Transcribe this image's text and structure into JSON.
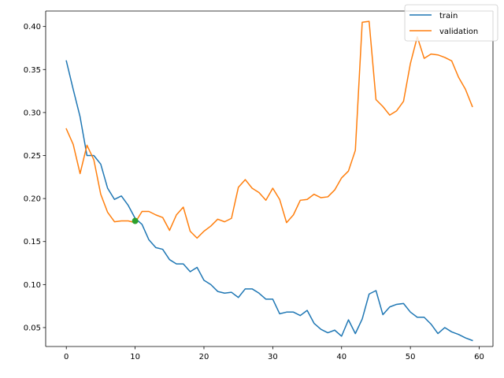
{
  "chart_data": {
    "type": "line",
    "title": "",
    "xlabel": "",
    "ylabel": "",
    "xlim": [
      -3,
      62
    ],
    "ylim": [
      0.028,
      0.418
    ],
    "xticks": [
      0,
      10,
      20,
      30,
      40,
      50,
      60
    ],
    "yticks": [
      0.05,
      0.1,
      0.15,
      0.2,
      0.25,
      0.3,
      0.35,
      0.4
    ],
    "grid": false,
    "legend_position": "top-right",
    "series": [
      {
        "name": "train",
        "color": "#1f77b4",
        "x": [
          0,
          1,
          2,
          3,
          4,
          5,
          6,
          7,
          8,
          9,
          10,
          11,
          12,
          13,
          14,
          15,
          16,
          17,
          18,
          19,
          20,
          21,
          22,
          23,
          24,
          25,
          26,
          27,
          28,
          29,
          30,
          31,
          32,
          33,
          34,
          35,
          36,
          37,
          38,
          39,
          40,
          41,
          42,
          43,
          44,
          45,
          46,
          47,
          48,
          49,
          50,
          51,
          52,
          53,
          54,
          55,
          56,
          57,
          58,
          59
        ],
        "y": [
          0.36,
          0.327,
          0.295,
          0.25,
          0.25,
          0.24,
          0.212,
          0.199,
          0.203,
          0.192,
          0.177,
          0.17,
          0.152,
          0.143,
          0.141,
          0.129,
          0.124,
          0.124,
          0.115,
          0.12,
          0.105,
          0.1,
          0.092,
          0.09,
          0.091,
          0.085,
          0.095,
          0.095,
          0.09,
          0.083,
          0.083,
          0.066,
          0.068,
          0.068,
          0.064,
          0.07,
          0.055,
          0.048,
          0.044,
          0.047,
          0.04,
          0.059,
          0.043,
          0.06,
          0.089,
          0.093,
          0.065,
          0.074,
          0.077,
          0.078,
          0.068,
          0.062,
          0.062,
          0.054,
          0.043,
          0.05,
          0.045,
          0.042,
          0.038,
          0.035
        ]
      },
      {
        "name": "validation",
        "color": "#ff7f0e",
        "x": [
          0,
          1,
          2,
          3,
          4,
          5,
          6,
          7,
          8,
          9,
          10,
          11,
          12,
          13,
          14,
          15,
          16,
          17,
          18,
          19,
          20,
          21,
          22,
          23,
          24,
          25,
          26,
          27,
          28,
          29,
          30,
          31,
          32,
          33,
          34,
          35,
          36,
          37,
          38,
          39,
          40,
          41,
          42,
          43,
          44,
          45,
          46,
          47,
          48,
          49,
          50,
          51,
          52,
          53,
          54,
          55,
          56,
          57,
          58,
          59
        ],
        "y": [
          0.281,
          0.263,
          0.229,
          0.262,
          0.245,
          0.205,
          0.184,
          0.173,
          0.174,
          0.174,
          0.172,
          0.185,
          0.185,
          0.181,
          0.178,
          0.163,
          0.181,
          0.19,
          0.162,
          0.154,
          0.162,
          0.168,
          0.176,
          0.173,
          0.177,
          0.213,
          0.222,
          0.212,
          0.207,
          0.198,
          0.212,
          0.199,
          0.172,
          0.181,
          0.198,
          0.199,
          0.205,
          0.201,
          0.202,
          0.21,
          0.224,
          0.232,
          0.256,
          0.405,
          0.406,
          0.315,
          0.307,
          0.297,
          0.302,
          0.313,
          0.357,
          0.388,
          0.363,
          0.368,
          0.367,
          0.364,
          0.36,
          0.341,
          0.327,
          0.307
        ]
      }
    ],
    "annotations": [
      {
        "type": "point",
        "x": 10,
        "y": 0.174,
        "color": "#2ca02c"
      }
    ]
  }
}
